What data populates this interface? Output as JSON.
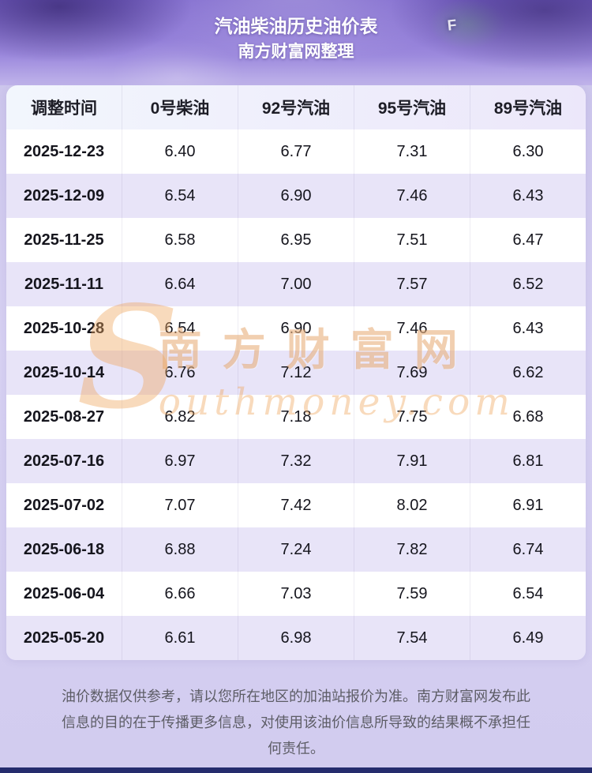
{
  "header": {
    "title": "汽油柴油历史油价表",
    "subtitle": "南方财富网整理",
    "gauge_letter": "F"
  },
  "chart_data": {
    "type": "table",
    "title": "汽油柴油历史油价表",
    "subtitle": "南方财富网整理",
    "columns": [
      "调整时间",
      "0号柴油",
      "92号汽油",
      "95号汽油",
      "89号汽油"
    ],
    "rows": [
      [
        "2025-12-23",
        "6.40",
        "6.77",
        "7.31",
        "6.30"
      ],
      [
        "2025-12-09",
        "6.54",
        "6.90",
        "7.46",
        "6.43"
      ],
      [
        "2025-11-25",
        "6.58",
        "6.95",
        "7.51",
        "6.47"
      ],
      [
        "2025-11-11",
        "6.64",
        "7.00",
        "7.57",
        "6.52"
      ],
      [
        "2025-10-28",
        "6.54",
        "6.90",
        "7.46",
        "6.43"
      ],
      [
        "2025-10-14",
        "6.76",
        "7.12",
        "7.69",
        "6.62"
      ],
      [
        "2025-08-27",
        "6.82",
        "7.18",
        "7.75",
        "6.68"
      ],
      [
        "2025-07-16",
        "6.97",
        "7.32",
        "7.91",
        "6.81"
      ],
      [
        "2025-07-02",
        "7.07",
        "7.42",
        "8.02",
        "6.91"
      ],
      [
        "2025-06-18",
        "6.88",
        "7.24",
        "7.82",
        "6.74"
      ],
      [
        "2025-06-04",
        "6.66",
        "7.03",
        "7.59",
        "6.54"
      ],
      [
        "2025-05-20",
        "6.61",
        "6.98",
        "7.54",
        "6.49"
      ]
    ]
  },
  "watermark": {
    "initial": "S",
    "line1": "南方财富网",
    "line2": "outhmoney.com",
    "color": "#e09a52"
  },
  "footer": {
    "disclaimer": "油价数据仅供参考，请以您所在地区的加油站报价为准。南方财富网发布此信息的目的在于传播更多信息，对使用该油价信息所导致的结果概不承担任何责任。"
  },
  "colors": {
    "page_background": "#d5cff1",
    "banner_purple": "#7b5fd2",
    "row_alternate": "#e8e4f8",
    "row_white": "#ffffff",
    "header_row_background": "#edeafa",
    "text_dark": "#15151d",
    "footer_text": "#5d5d66",
    "bottom_bar": "#252c6d",
    "watermark_orange": "#e09a52"
  }
}
